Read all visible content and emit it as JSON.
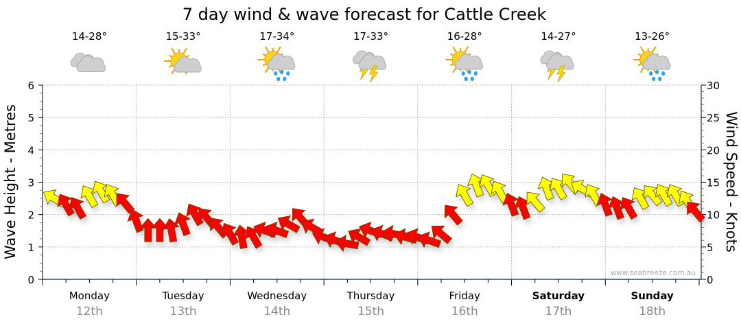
{
  "chart_data": {
    "type": "scatter",
    "title": "7 day wind & wave forecast for Cattle Creek",
    "ylabel_left": "Wave Height - Metres",
    "ylabel_right": "Wind Speed - Knots",
    "ylim_left": [
      0,
      6
    ],
    "ylim_right": [
      0,
      30
    ],
    "yticks_left": [
      "0",
      "1",
      "2",
      "3",
      "4",
      "5",
      "6"
    ],
    "yticks_right": [
      "0",
      "5",
      "10",
      "15",
      "20",
      "25",
      "30"
    ],
    "grid": true,
    "watermark": "www.seabreeze.com.au",
    "days": [
      {
        "day": "Monday",
        "date": "12th",
        "temp": "14-28°",
        "icon": "cloudy",
        "bold": false
      },
      {
        "day": "Tuesday",
        "date": "13th",
        "temp": "15-33°",
        "icon": "partly-cloudy",
        "bold": false
      },
      {
        "day": "Wednesday",
        "date": "14th",
        "temp": "17-34°",
        "icon": "sun-rain",
        "bold": false
      },
      {
        "day": "Thursday",
        "date": "15th",
        "temp": "17-33°",
        "icon": "storm",
        "bold": false
      },
      {
        "day": "Friday",
        "date": "16th",
        "temp": "16-28°",
        "icon": "sun-rain",
        "bold": false
      },
      {
        "day": "Saturday",
        "date": "17th",
        "temp": "14-27°",
        "icon": "storm",
        "bold": true
      },
      {
        "day": "Sunday",
        "date": "18th",
        "temp": "13-26°",
        "icon": "sun-rain",
        "bold": true
      }
    ],
    "wind_series": {
      "name": "Wind (knots, arrow heading in degrees)",
      "threshold_knots": 12,
      "colors": {
        "below": "#ff0000",
        "above": "#ffff00",
        "outline": "#5a4a00",
        "axis": "#1f4e79"
      },
      "points": [
        {
          "h": 3,
          "kt": 12.5,
          "dir": 300
        },
        {
          "h": 6,
          "kt": 11.5,
          "dir": 330
        },
        {
          "h": 9,
          "kt": 11,
          "dir": 330
        },
        {
          "h": 12,
          "kt": 12.8,
          "dir": 330
        },
        {
          "h": 15,
          "kt": 13.5,
          "dir": 330
        },
        {
          "h": 18,
          "kt": 13,
          "dir": 330
        },
        {
          "h": 21,
          "kt": 11.8,
          "dir": 320
        },
        {
          "h": 24,
          "kt": 9,
          "dir": 340
        },
        {
          "h": 27,
          "kt": 7.5,
          "dir": 0
        },
        {
          "h": 30,
          "kt": 7.5,
          "dir": 0
        },
        {
          "h": 33,
          "kt": 7.5,
          "dir": 350
        },
        {
          "h": 36,
          "kt": 8.5,
          "dir": 340
        },
        {
          "h": 39,
          "kt": 10,
          "dir": 330
        },
        {
          "h": 42,
          "kt": 9.5,
          "dir": 320
        },
        {
          "h": 45,
          "kt": 8,
          "dir": 320
        },
        {
          "h": 48,
          "kt": 7,
          "dir": 330
        },
        {
          "h": 51,
          "kt": 6.5,
          "dir": 350
        },
        {
          "h": 54,
          "kt": 6.5,
          "dir": 330
        },
        {
          "h": 57,
          "kt": 7.5,
          "dir": 290
        },
        {
          "h": 60,
          "kt": 7.5,
          "dir": 290
        },
        {
          "h": 63,
          "kt": 8.5,
          "dir": 300
        },
        {
          "h": 66,
          "kt": 9.5,
          "dir": 320
        },
        {
          "h": 69,
          "kt": 8,
          "dir": 300
        },
        {
          "h": 72,
          "kt": 6.5,
          "dir": 290
        },
        {
          "h": 75,
          "kt": 6,
          "dir": 290
        },
        {
          "h": 78,
          "kt": 5.5,
          "dir": 280
        },
        {
          "h": 81,
          "kt": 6.5,
          "dir": 300
        },
        {
          "h": 84,
          "kt": 7.5,
          "dir": 290
        },
        {
          "h": 87,
          "kt": 7,
          "dir": 290
        },
        {
          "h": 90,
          "kt": 7,
          "dir": 280
        },
        {
          "h": 93,
          "kt": 6.5,
          "dir": 285
        },
        {
          "h": 96,
          "kt": 6.5,
          "dir": 290
        },
        {
          "h": 99,
          "kt": 6,
          "dir": 290
        },
        {
          "h": 102,
          "kt": 7,
          "dir": 310
        },
        {
          "h": 105,
          "kt": 10,
          "dir": 320
        },
        {
          "h": 108,
          "kt": 13,
          "dir": 330
        },
        {
          "h": 111,
          "kt": 14.5,
          "dir": 340
        },
        {
          "h": 114,
          "kt": 14.5,
          "dir": 330
        },
        {
          "h": 117,
          "kt": 13.5,
          "dir": 330
        },
        {
          "h": 120,
          "kt": 11.5,
          "dir": 340
        },
        {
          "h": 123,
          "kt": 11,
          "dir": 340
        },
        {
          "h": 126,
          "kt": 12,
          "dir": 320
        },
        {
          "h": 129,
          "kt": 14,
          "dir": 340
        },
        {
          "h": 132,
          "kt": 14,
          "dir": 330
        },
        {
          "h": 135,
          "kt": 14.8,
          "dir": 320
        },
        {
          "h": 138,
          "kt": 14,
          "dir": 300
        },
        {
          "h": 141,
          "kt": 13,
          "dir": 330
        },
        {
          "h": 144,
          "kt": 11.5,
          "dir": 340
        },
        {
          "h": 147,
          "kt": 11,
          "dir": 340
        },
        {
          "h": 150,
          "kt": 11,
          "dir": 330
        },
        {
          "h": 153,
          "kt": 12.5,
          "dir": 330
        },
        {
          "h": 156,
          "kt": 13,
          "dir": 320
        },
        {
          "h": 159,
          "kt": 13,
          "dir": 330
        },
        {
          "h": 162,
          "kt": 13,
          "dir": 330
        },
        {
          "h": 165,
          "kt": 12,
          "dir": 330
        },
        {
          "h": 167,
          "kt": 10.5,
          "dir": 320
        }
      ]
    }
  }
}
